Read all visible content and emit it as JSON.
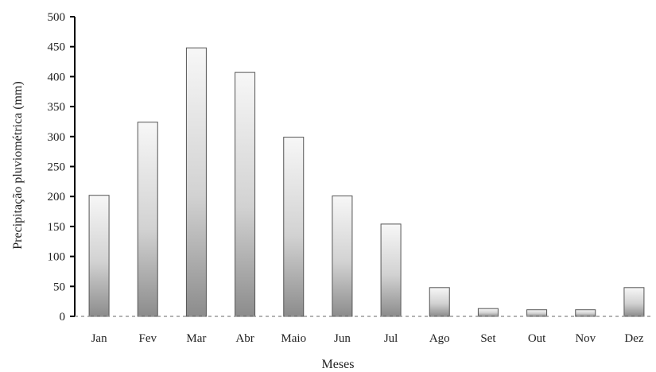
{
  "chart_data": {
    "type": "bar",
    "title": "",
    "xlabel": "Meses",
    "ylabel": "Precipitação pluviométrica (mm)",
    "categories": [
      "Jan",
      "Fev",
      "Mar",
      "Abr",
      "Maio",
      "Jun",
      "Jul",
      "Ago",
      "Set",
      "Out",
      "Nov",
      "Dez"
    ],
    "values": [
      202,
      324,
      448,
      407,
      299,
      201,
      154,
      48,
      13,
      11,
      11,
      48
    ],
    "ylim": [
      0,
      500
    ],
    "yticks": [
      0,
      50,
      100,
      150,
      200,
      250,
      300,
      350,
      400,
      450,
      500
    ],
    "grid": false,
    "legend": "none",
    "colors": {
      "bar_top": "#f7f7f7",
      "bar_bottom": "#8c8c8c",
      "bar_stroke": "#555555",
      "axis": "#000000",
      "baseline_dash": "#9a9a9a"
    }
  }
}
